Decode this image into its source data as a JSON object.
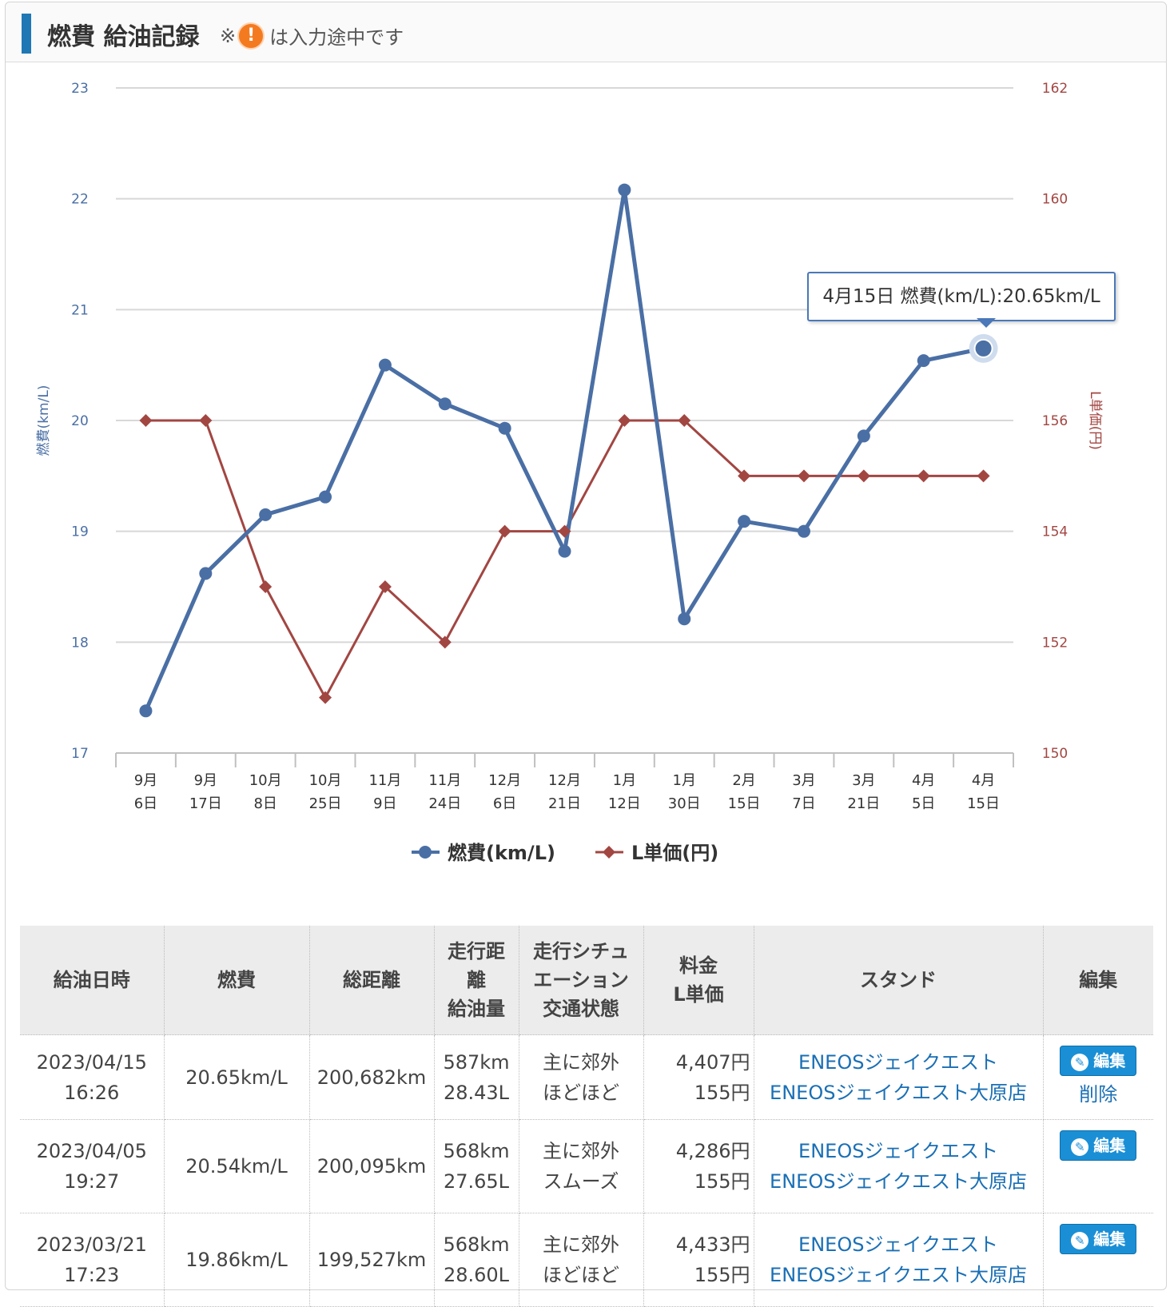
{
  "header": {
    "title": "燃費 給油記録",
    "note_prefix": "※",
    "note_icon": "!",
    "note_text": "は入力途中です"
  },
  "tooltip": {
    "text": "4月15日 燃費(km/L):20.65km/L"
  },
  "legend": {
    "series1": "燃費(km/L)",
    "series2": "L単価(円)"
  },
  "colors": {
    "fuel": "#4a6fa5",
    "price": "#a24642",
    "accent": "#1f78b4",
    "link": "#1a6fb5"
  },
  "chart_data": {
    "type": "line",
    "categories": [
      "9月\n6日",
      "9月\n17日",
      "10月\n8日",
      "10月\n25日",
      "11月\n9日",
      "11月\n24日",
      "12月\n6日",
      "12月\n21日",
      "1月\n12日",
      "1月\n30日",
      "2月\n15日",
      "3月\n7日",
      "3月\n21日",
      "4月\n5日",
      "4月\n15日"
    ],
    "series": [
      {
        "name": "燃費(km/L)",
        "axis": "left",
        "values": [
          17.38,
          18.62,
          19.15,
          19.31,
          20.5,
          20.15,
          19.93,
          18.82,
          22.08,
          18.21,
          19.09,
          19.0,
          19.86,
          20.54,
          20.65
        ]
      },
      {
        "name": "L単価(円)",
        "axis": "right",
        "values": [
          156,
          156,
          153,
          151,
          153,
          152,
          154,
          154,
          156,
          156,
          155,
          155,
          155,
          155,
          155
        ]
      }
    ],
    "ylabel": "燃費(km/L)",
    "ylabel_right": "L単価(円)",
    "ylim": [
      17,
      23
    ],
    "yticks": [
      "17",
      "18",
      "19",
      "20",
      "21",
      "22",
      "23"
    ],
    "ylim_right": [
      150,
      162
    ],
    "yticks_right": [
      "150",
      "152",
      "154",
      "156",
      "158",
      "160",
      "162"
    ],
    "grid": true,
    "legend": "bottom-center"
  },
  "table": {
    "headers": [
      [
        "給油日時"
      ],
      [
        "燃費"
      ],
      [
        "総距離"
      ],
      [
        "走行距",
        "離",
        "給油量"
      ],
      [
        "走行シチュ",
        "エーション",
        "交通状態"
      ],
      [
        "料金",
        "L単価"
      ],
      [
        "スタンド"
      ],
      [
        "編集"
      ]
    ],
    "rows": [
      {
        "date": "2023/04/15",
        "time": "16:26",
        "fuel": "20.65km/L",
        "total": "200,682km",
        "dist": "587km",
        "amount": "28.43L",
        "situation": "主に郊外",
        "traffic": "ほどほど",
        "cost": "4,407円",
        "unit": "155円",
        "stand1": "ENEOSジェイクエスト",
        "stand2": "ENEOSジェイクエスト大原店",
        "edit": "編集",
        "delete": "削除"
      },
      {
        "date": "2023/04/05",
        "time": "19:27",
        "fuel": "20.54km/L",
        "total": "200,095km",
        "dist": "568km",
        "amount": "27.65L",
        "situation": "主に郊外",
        "traffic": "スムーズ",
        "cost": "4,286円",
        "unit": "155円",
        "stand1": "ENEOSジェイクエスト",
        "stand2": "ENEOSジェイクエスト大原店",
        "edit": "編集"
      },
      {
        "date": "2023/03/21",
        "time": "17:23",
        "fuel": "19.86km/L",
        "total": "199,527km",
        "dist": "568km",
        "amount": "28.60L",
        "situation": "主に郊外",
        "traffic": "ほどほど",
        "cost": "4,433円",
        "unit": "155円",
        "stand1": "ENEOSジェイクエスト",
        "stand2": "ENEOSジェイクエスト大原店",
        "edit": "編集"
      }
    ]
  }
}
